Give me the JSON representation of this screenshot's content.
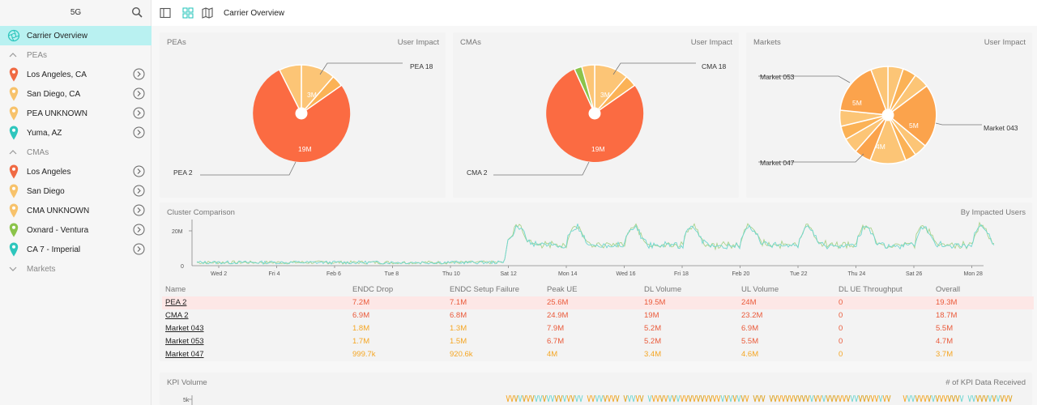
{
  "sidebar": {
    "title": "5G",
    "active_item": "Carrier Overview",
    "groups": [
      {
        "label": "PEAs",
        "items": [
          {
            "label": "Los Angeles, CA",
            "pin_color": "#f06a43"
          },
          {
            "label": "San Diego, CA",
            "pin_color": "#f7c26b"
          },
          {
            "label": "PEA UNKNOWN",
            "pin_color": "#f7c26b"
          },
          {
            "label": "Yuma, AZ",
            "pin_color": "#2ec6bd"
          }
        ]
      },
      {
        "label": "CMAs",
        "items": [
          {
            "label": "Los Angeles",
            "pin_color": "#f06a43"
          },
          {
            "label": "San Diego",
            "pin_color": "#f7c26b"
          },
          {
            "label": "CMA UNKNOWN",
            "pin_color": "#f7c26b"
          },
          {
            "label": "Oxnard - Ventura",
            "pin_color": "#8bc34a"
          },
          {
            "label": "CA 7 - Imperial",
            "pin_color": "#2ec6bd"
          }
        ]
      },
      {
        "label": "Markets",
        "items": []
      }
    ]
  },
  "topbar": {
    "title": "Carrier Overview"
  },
  "pies": [
    {
      "title": "PEAs",
      "subtitle": "User Impact",
      "labels": {
        "big_value": "19M",
        "small_value": "3M",
        "top_callout": "PEA 18",
        "bottom_callout": "PEA 2"
      }
    },
    {
      "title": "CMAs",
      "subtitle": "User Impact",
      "labels": {
        "big_value": "19M",
        "small_value": "3M",
        "top_callout": "CMA 18",
        "bottom_callout": "CMA 2"
      }
    },
    {
      "title": "Markets",
      "subtitle": "User Impact",
      "labels": {
        "v1": "5M",
        "v2": "5M",
        "v3": "4M",
        "c1": "Market 053",
        "c2": "Market 043",
        "c3": "Market 047"
      }
    }
  ],
  "cluster": {
    "title": "Cluster Comparison",
    "subtitle": "By Impacted Users",
    "y_ticks": [
      "20M",
      "0"
    ],
    "x_ticks": [
      "Wed 2",
      "Fri 4",
      "Feb 6",
      "Tue 8",
      "Thu 10",
      "Sat 12",
      "Mon 14",
      "Wed 16",
      "Fri 18",
      "Feb 20",
      "Tue 22",
      "Thu 24",
      "Sat 26",
      "Mon 28"
    ]
  },
  "table": {
    "columns": [
      "Name",
      "ENDC Drop",
      "ENDC Setup Failure",
      "Peak UE",
      "DL Volume",
      "UL Volume",
      "DL UE Throughput",
      "Overall"
    ],
    "rows": [
      [
        "PEA 2",
        "7.2M",
        "7.1M",
        "25.6M",
        "19.5M",
        "24M",
        "0",
        "19.3M"
      ],
      [
        "CMA 2",
        "6.9M",
        "6.8M",
        "24.9M",
        "19M",
        "23.2M",
        "0",
        "18.7M"
      ],
      [
        "Market 043",
        "1.8M",
        "1.3M",
        "7.9M",
        "5.2M",
        "6.9M",
        "0",
        "5.5M"
      ],
      [
        "Market 053",
        "1.7M",
        "1.5M",
        "6.7M",
        "5.2M",
        "5.5M",
        "0",
        "4.7M"
      ],
      [
        "Market 047",
        "999.7k",
        "920.6k",
        "4M",
        "3.4M",
        "4.6M",
        "0",
        "3.7M"
      ]
    ]
  },
  "kpi": {
    "title": "KPI Volume",
    "subtitle": "# of KPI Data Received",
    "y_tick": "5k"
  },
  "colors": {
    "accent": "#2ec6bd",
    "red": "#f06a43",
    "orange": "#f5a623",
    "light_orange": "#f9c46b",
    "selected_row": "#fde7e6",
    "active_nav": "#b9f1f1"
  }
}
